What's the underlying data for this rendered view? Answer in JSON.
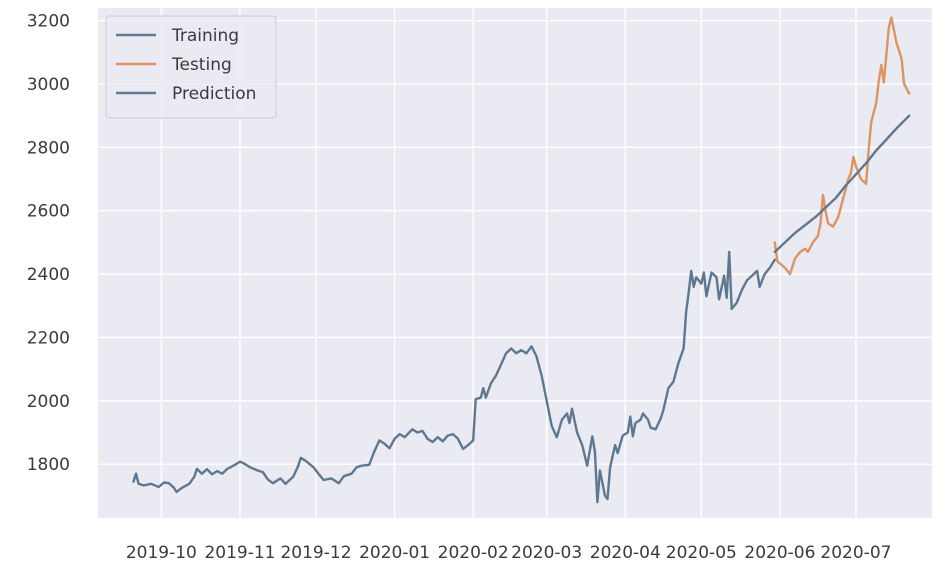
{
  "chart_data": {
    "type": "line",
    "title": "",
    "xlabel": "",
    "ylabel": "",
    "grid": true,
    "legend_position": "top-left",
    "xlim": [
      "2019-09-06",
      "2020-07-31"
    ],
    "ylim": [
      1630,
      3240
    ],
    "x_ticks": [
      "2019-10",
      "2019-11",
      "2019-12",
      "2020-01",
      "2020-02",
      "2020-03",
      "2020-04",
      "2020-05",
      "2020-06",
      "2020-07"
    ],
    "x_tick_dates": [
      "2019-10-01",
      "2019-11-01",
      "2019-12-01",
      "2020-01-01",
      "2020-02-01",
      "2020-03-01",
      "2020-04-01",
      "2020-05-01",
      "2020-06-01",
      "2020-07-01"
    ],
    "y_ticks": [
      1800,
      2000,
      2200,
      2400,
      2600,
      2800,
      3000,
      3200
    ],
    "series": [
      {
        "name": "Training",
        "color": "#5f7890",
        "points": [
          [
            "2019-09-20",
            1745
          ],
          [
            "2019-09-21",
            1770
          ],
          [
            "2019-09-22",
            1738
          ],
          [
            "2019-09-24",
            1733
          ],
          [
            "2019-09-27",
            1738
          ],
          [
            "2019-09-30",
            1728
          ],
          [
            "2019-10-02",
            1742
          ],
          [
            "2019-10-04",
            1740
          ],
          [
            "2019-10-06",
            1725
          ],
          [
            "2019-10-07",
            1712
          ],
          [
            "2019-10-09",
            1725
          ],
          [
            "2019-10-12",
            1738
          ],
          [
            "2019-10-14",
            1760
          ],
          [
            "2019-10-15",
            1785
          ],
          [
            "2019-10-17",
            1770
          ],
          [
            "2019-10-19",
            1784
          ],
          [
            "2019-10-21",
            1768
          ],
          [
            "2019-10-23",
            1778
          ],
          [
            "2019-10-25",
            1770
          ],
          [
            "2019-10-27",
            1785
          ],
          [
            "2019-10-30",
            1798
          ],
          [
            "2019-11-01",
            1808
          ],
          [
            "2019-11-03",
            1800
          ],
          [
            "2019-11-05",
            1790
          ],
          [
            "2019-11-08",
            1780
          ],
          [
            "2019-11-10",
            1775
          ],
          [
            "2019-11-12",
            1752
          ],
          [
            "2019-11-14",
            1740
          ],
          [
            "2019-11-17",
            1755
          ],
          [
            "2019-11-19",
            1738
          ],
          [
            "2019-11-22",
            1760
          ],
          [
            "2019-11-24",
            1795
          ],
          [
            "2019-11-25",
            1820
          ],
          [
            "2019-11-27",
            1810
          ],
          [
            "2019-11-30",
            1790
          ],
          [
            "2019-12-02",
            1770
          ],
          [
            "2019-12-04",
            1750
          ],
          [
            "2019-12-07",
            1755
          ],
          [
            "2019-12-10",
            1740
          ],
          [
            "2019-12-12",
            1762
          ],
          [
            "2019-12-15",
            1770
          ],
          [
            "2019-12-17",
            1790
          ],
          [
            "2019-12-19",
            1795
          ],
          [
            "2019-12-22",
            1798
          ],
          [
            "2019-12-24",
            1840
          ],
          [
            "2019-12-26",
            1875
          ],
          [
            "2019-12-28",
            1865
          ],
          [
            "2019-12-30",
            1850
          ],
          [
            "2020-01-01",
            1880
          ],
          [
            "2020-01-03",
            1895
          ],
          [
            "2020-01-05",
            1885
          ],
          [
            "2020-01-08",
            1910
          ],
          [
            "2020-01-10",
            1900
          ],
          [
            "2020-01-12",
            1905
          ],
          [
            "2020-01-14",
            1880
          ],
          [
            "2020-01-16",
            1870
          ],
          [
            "2020-01-18",
            1885
          ],
          [
            "2020-01-20",
            1872
          ],
          [
            "2020-01-22",
            1890
          ],
          [
            "2020-01-24",
            1895
          ],
          [
            "2020-01-26",
            1880
          ],
          [
            "2020-01-28",
            1848
          ],
          [
            "2020-01-30",
            1860
          ],
          [
            "2020-02-01",
            1875
          ],
          [
            "2020-02-02",
            2005
          ],
          [
            "2020-02-04",
            2010
          ],
          [
            "2020-02-05",
            2040
          ],
          [
            "2020-02-06",
            2010
          ],
          [
            "2020-02-08",
            2055
          ],
          [
            "2020-02-10",
            2080
          ],
          [
            "2020-02-12",
            2115
          ],
          [
            "2020-02-14",
            2150
          ],
          [
            "2020-02-16",
            2165
          ],
          [
            "2020-02-18",
            2150
          ],
          [
            "2020-02-20",
            2160
          ],
          [
            "2020-02-22",
            2150
          ],
          [
            "2020-02-24",
            2172
          ],
          [
            "2020-02-26",
            2140
          ],
          [
            "2020-02-28",
            2080
          ],
          [
            "2020-03-01",
            2000
          ],
          [
            "2020-03-02",
            1960
          ],
          [
            "2020-03-03",
            1920
          ],
          [
            "2020-03-05",
            1885
          ],
          [
            "2020-03-07",
            1940
          ],
          [
            "2020-03-09",
            1960
          ],
          [
            "2020-03-10",
            1930
          ],
          [
            "2020-03-11",
            1975
          ],
          [
            "2020-03-13",
            1900
          ],
          [
            "2020-03-15",
            1860
          ],
          [
            "2020-03-17",
            1795
          ],
          [
            "2020-03-19",
            1888
          ],
          [
            "2020-03-20",
            1840
          ],
          [
            "2020-03-21",
            1680
          ],
          [
            "2020-03-22",
            1780
          ],
          [
            "2020-03-24",
            1700
          ],
          [
            "2020-03-25",
            1690
          ],
          [
            "2020-03-26",
            1790
          ],
          [
            "2020-03-28",
            1860
          ],
          [
            "2020-03-29",
            1835
          ],
          [
            "2020-03-31",
            1890
          ],
          [
            "2020-04-02",
            1900
          ],
          [
            "2020-04-03",
            1950
          ],
          [
            "2020-04-04",
            1888
          ],
          [
            "2020-04-05",
            1930
          ],
          [
            "2020-04-07",
            1940
          ],
          [
            "2020-04-08",
            1960
          ],
          [
            "2020-04-10",
            1940
          ],
          [
            "2020-04-11",
            1915
          ],
          [
            "2020-04-13",
            1910
          ],
          [
            "2020-04-15",
            1945
          ],
          [
            "2020-04-16",
            1970
          ],
          [
            "2020-04-18",
            2040
          ],
          [
            "2020-04-20",
            2060
          ],
          [
            "2020-04-22",
            2120
          ],
          [
            "2020-04-24",
            2165
          ],
          [
            "2020-04-25",
            2280
          ],
          [
            "2020-04-26",
            2340
          ],
          [
            "2020-04-27",
            2410
          ],
          [
            "2020-04-28",
            2360
          ],
          [
            "2020-04-29",
            2390
          ],
          [
            "2020-05-01",
            2370
          ],
          [
            "2020-05-02",
            2405
          ],
          [
            "2020-05-03",
            2330
          ],
          [
            "2020-05-05",
            2405
          ],
          [
            "2020-05-07",
            2390
          ],
          [
            "2020-05-08",
            2320
          ],
          [
            "2020-05-10",
            2395
          ],
          [
            "2020-05-11",
            2325
          ],
          [
            "2020-05-12",
            2470
          ],
          [
            "2020-05-13",
            2290
          ],
          [
            "2020-05-15",
            2310
          ],
          [
            "2020-05-17",
            2350
          ],
          [
            "2020-05-19",
            2380
          ],
          [
            "2020-05-21",
            2395
          ],
          [
            "2020-05-23",
            2410
          ],
          [
            "2020-05-24",
            2360
          ],
          [
            "2020-05-26",
            2400
          ],
          [
            "2020-05-28",
            2420
          ],
          [
            "2020-05-30",
            2445
          ]
        ]
      },
      {
        "name": "Testing",
        "color": "#dd9460",
        "points": [
          [
            "2020-05-30",
            2500
          ],
          [
            "2020-05-31",
            2440
          ],
          [
            "2020-06-03",
            2420
          ],
          [
            "2020-06-05",
            2400
          ],
          [
            "2020-06-07",
            2450
          ],
          [
            "2020-06-09",
            2470
          ],
          [
            "2020-06-11",
            2480
          ],
          [
            "2020-06-12",
            2470
          ],
          [
            "2020-06-14",
            2500
          ],
          [
            "2020-06-16",
            2520
          ],
          [
            "2020-06-17",
            2560
          ],
          [
            "2020-06-18",
            2650
          ],
          [
            "2020-06-19",
            2600
          ],
          [
            "2020-06-20",
            2560
          ],
          [
            "2020-06-22",
            2550
          ],
          [
            "2020-06-24",
            2580
          ],
          [
            "2020-06-26",
            2640
          ],
          [
            "2020-06-28",
            2700
          ],
          [
            "2020-06-29",
            2720
          ],
          [
            "2020-06-30",
            2770
          ],
          [
            "2020-07-01",
            2740
          ],
          [
            "2020-07-03",
            2700
          ],
          [
            "2020-07-05",
            2685
          ],
          [
            "2020-07-06",
            2790
          ],
          [
            "2020-07-07",
            2880
          ],
          [
            "2020-07-09",
            2940
          ],
          [
            "2020-07-10",
            3010
          ],
          [
            "2020-07-11",
            3060
          ],
          [
            "2020-07-12",
            3005
          ],
          [
            "2020-07-14",
            3180
          ],
          [
            "2020-07-15",
            3210
          ],
          [
            "2020-07-17",
            3130
          ],
          [
            "2020-07-19",
            3080
          ],
          [
            "2020-07-20",
            3000
          ],
          [
            "2020-07-22",
            2970
          ]
        ]
      },
      {
        "name": "Prediction",
        "color": "#5f7890",
        "points": [
          [
            "2020-05-30",
            2470
          ],
          [
            "2020-06-03",
            2500
          ],
          [
            "2020-06-07",
            2530
          ],
          [
            "2020-06-11",
            2555
          ],
          [
            "2020-06-15",
            2580
          ],
          [
            "2020-06-19",
            2610
          ],
          [
            "2020-06-23",
            2640
          ],
          [
            "2020-06-27",
            2680
          ],
          [
            "2020-07-01",
            2715
          ],
          [
            "2020-07-05",
            2750
          ],
          [
            "2020-07-09",
            2790
          ],
          [
            "2020-07-13",
            2825
          ],
          [
            "2020-07-17",
            2860
          ],
          [
            "2020-07-22",
            2900
          ]
        ]
      }
    ]
  }
}
